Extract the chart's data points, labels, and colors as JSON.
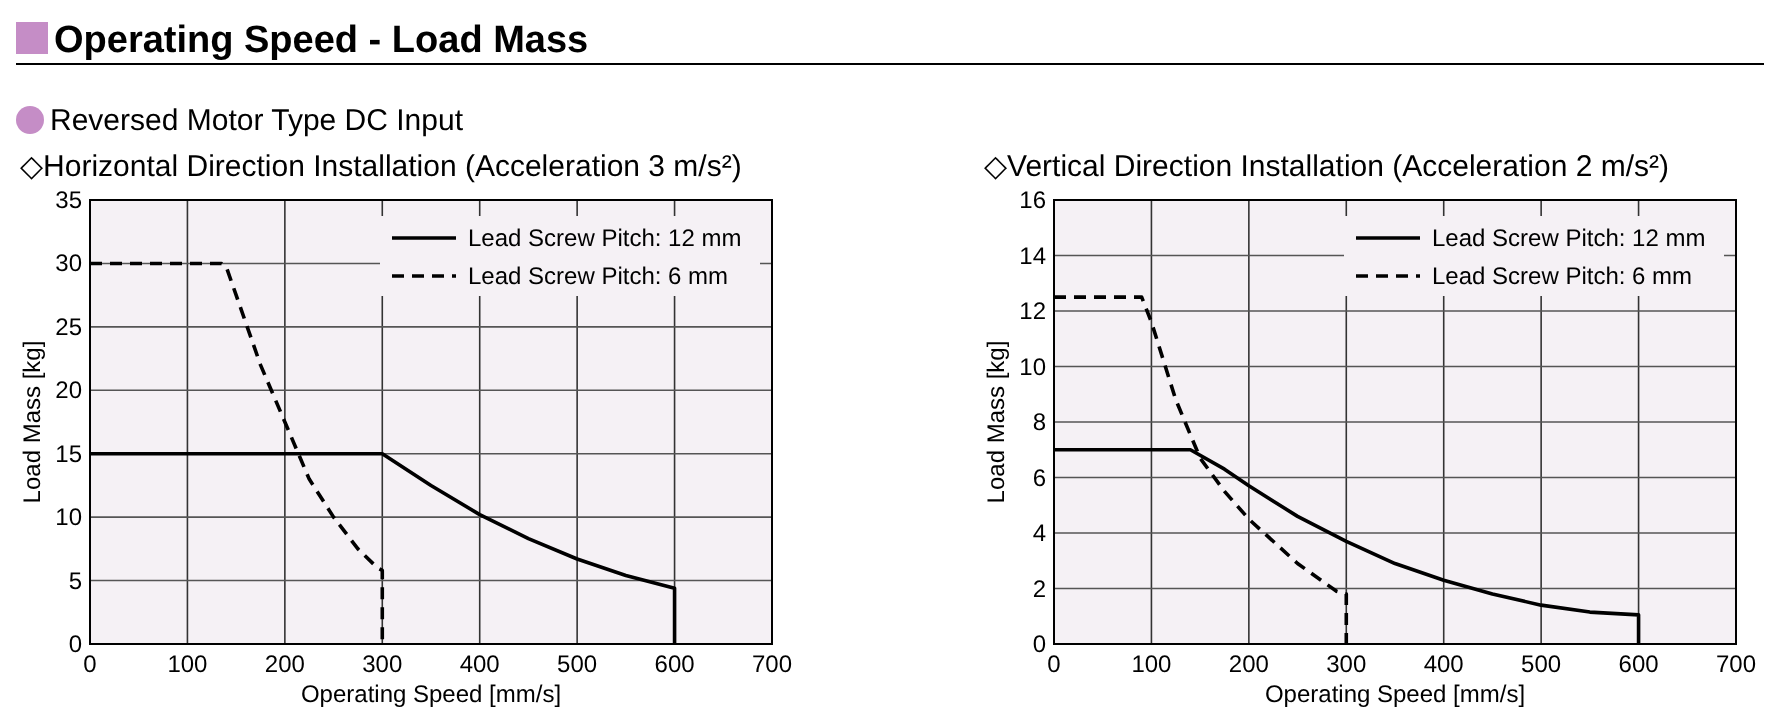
{
  "chart_data": [
    {
      "type": "line",
      "title": "◇Horizontal Direction Installation (Acceleration 3 m/s²)",
      "annotations": [
        "Operating Speed - Load Mass",
        "Reversed Motor Type DC Input"
      ],
      "xlabel": "Operating Speed [mm/s]",
      "ylabel": "Load Mass [kg]",
      "xlim": [
        0,
        700
      ],
      "xticks": [
        0,
        100,
        200,
        300,
        400,
        500,
        600,
        700
      ],
      "ylim": [
        0,
        35
      ],
      "yticks": [
        0,
        5,
        10,
        15,
        20,
        25,
        30,
        35
      ],
      "grid": true,
      "legend": "top right",
      "series": [
        {
          "name": "Lead Screw Pitch: 12 mm",
          "color": "#000000",
          "line_style": "solid",
          "x": [
            0,
            300,
            350,
            400,
            450,
            500,
            550,
            600,
            600
          ],
          "values": [
            15,
            15,
            12.5,
            10.2,
            8.3,
            6.7,
            5.4,
            4.4,
            0
          ]
        },
        {
          "name": "Lead Screw Pitch: 6 mm",
          "color": "#000000",
          "line_style": "dashed",
          "x": [
            0,
            135,
            140,
            150,
            175,
            200,
            225,
            250,
            275,
            295,
            300,
            300
          ],
          "values": [
            30,
            30,
            29.7,
            27.5,
            22,
            17.5,
            13,
            10,
            7.5,
            6,
            5.8,
            0
          ]
        }
      ]
    },
    {
      "type": "line",
      "title": "◇Vertical Direction Installation (Acceleration 2 m/s²)",
      "xlabel": "Operating Speed [mm/s]",
      "ylabel": "Load Mass [kg]",
      "xlim": [
        0,
        700
      ],
      "xticks": [
        0,
        100,
        200,
        300,
        400,
        500,
        600,
        700
      ],
      "ylim": [
        0,
        16
      ],
      "yticks": [
        0,
        2,
        4,
        6,
        8,
        10,
        12,
        14,
        16
      ],
      "grid": true,
      "legend": "top right",
      "series": [
        {
          "name": "Lead Screw Pitch: 12 mm",
          "color": "#000000",
          "line_style": "solid",
          "x": [
            0,
            140,
            175,
            200,
            250,
            300,
            350,
            400,
            450,
            500,
            550,
            600,
            600
          ],
          "values": [
            7,
            7,
            6.3,
            5.7,
            4.6,
            3.7,
            2.9,
            2.3,
            1.8,
            1.4,
            1.15,
            1.05,
            0
          ]
        },
        {
          "name": "Lead Screw Pitch: 6 mm",
          "color": "#000000",
          "line_style": "dashed",
          "x": [
            0,
            90,
            100,
            125,
            150,
            175,
            200,
            250,
            290,
            300,
            300
          ],
          "values": [
            12.5,
            12.5,
            11.6,
            8.8,
            6.7,
            5.5,
            4.5,
            2.9,
            1.9,
            1.8,
            0
          ]
        }
      ]
    }
  ]
}
